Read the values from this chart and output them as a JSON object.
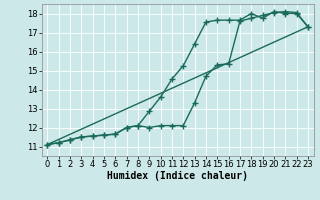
{
  "bg_color": "#cce8e8",
  "grid_color": "#ffffff",
  "line_color": "#1a6b5a",
  "marker": "+",
  "markersize": 4,
  "linewidth": 1.0,
  "xlabel": "Humidex (Indice chaleur)",
  "xlabel_fontsize": 7,
  "tick_fontsize": 6,
  "xlim": [
    -0.5,
    23.5
  ],
  "ylim": [
    10.5,
    18.5
  ],
  "xticks": [
    0,
    1,
    2,
    3,
    4,
    5,
    6,
    7,
    8,
    9,
    10,
    11,
    12,
    13,
    14,
    15,
    16,
    17,
    18,
    19,
    20,
    21,
    22,
    23
  ],
  "yticks": [
    11,
    12,
    13,
    14,
    15,
    16,
    17,
    18
  ],
  "line1_x": [
    0,
    1,
    2,
    3,
    4,
    5,
    6,
    7,
    8,
    9,
    10,
    11,
    12,
    13,
    14,
    15,
    16,
    17,
    18,
    19,
    20,
    21,
    22,
    23
  ],
  "line1_y": [
    11.1,
    11.2,
    11.35,
    11.5,
    11.55,
    11.6,
    11.65,
    12.0,
    12.1,
    12.0,
    12.1,
    12.1,
    12.1,
    13.3,
    14.7,
    15.3,
    15.35,
    17.6,
    17.75,
    17.9,
    18.05,
    18.1,
    18.05,
    17.3
  ],
  "line2_x": [
    0,
    1,
    2,
    3,
    4,
    5,
    6,
    7,
    8,
    9,
    10,
    11,
    12,
    13,
    14,
    15,
    16,
    17,
    18,
    19,
    20,
    21,
    22,
    23
  ],
  "line2_y": [
    11.1,
    11.2,
    11.35,
    11.5,
    11.55,
    11.6,
    11.65,
    12.0,
    12.1,
    12.85,
    13.6,
    14.55,
    15.25,
    16.4,
    17.55,
    17.65,
    17.65,
    17.65,
    18.0,
    17.75,
    18.1,
    18.0,
    18.0,
    17.3
  ],
  "line3_x": [
    0,
    23
  ],
  "line3_y": [
    11.1,
    17.3
  ]
}
